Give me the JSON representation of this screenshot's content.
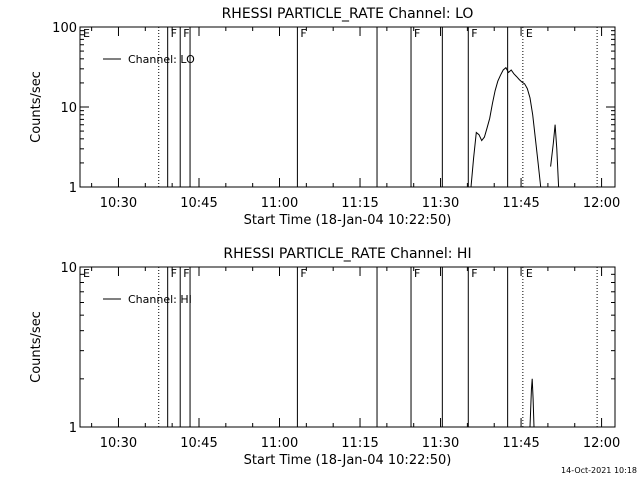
{
  "footer_stamp": "14-Oct-2021 10:18",
  "chart_data": [
    {
      "type": "line",
      "title": "RHESSI PARTICLE_RATE Channel: LO",
      "xlabel": "Start Time (18-Jan-04 10:22:50)",
      "ylabel": "Counts/sec",
      "xlim": [
        "10:22:50",
        "12:02:30"
      ],
      "ylim": [
        1,
        100
      ],
      "yscale": "log",
      "x_ticks": [
        "10:30",
        "10:45",
        "11:00",
        "11:15",
        "11:30",
        "11:45",
        "12:00"
      ],
      "y_ticks": [
        "1",
        "10",
        "100"
      ],
      "legend": {
        "label": "Channel: LO",
        "position": "top-left"
      },
      "flag_lines": [
        {
          "time": "10:22:50",
          "label": "E",
          "style": "none"
        },
        {
          "time": "10:37:30",
          "label": "",
          "style": "dotted"
        },
        {
          "time": "10:39:10",
          "label": "F",
          "style": "solid"
        },
        {
          "time": "10:41:30",
          "label": "F",
          "style": "solid"
        },
        {
          "time": "10:43:20",
          "label": "",
          "style": "solid"
        },
        {
          "time": "11:03:20",
          "label": "F",
          "style": "solid"
        },
        {
          "time": "11:18:10",
          "label": "",
          "style": "solid"
        },
        {
          "time": "11:24:30",
          "label": "F",
          "style": "solid"
        },
        {
          "time": "11:30:20",
          "label": "",
          "style": "solid"
        },
        {
          "time": "11:35:10",
          "label": "F",
          "style": "solid"
        },
        {
          "time": "11:42:30",
          "label": "",
          "style": "solid"
        },
        {
          "time": "11:45:20",
          "label": "E",
          "style": "dotted"
        },
        {
          "time": "11:59:10",
          "label": "",
          "style": "dotted"
        }
      ],
      "series": [
        {
          "name": "Channel: LO",
          "segments": [
            [
              [
                "11:35:40",
                1.0
              ],
              [
                "11:36:10",
                2.3
              ],
              [
                "11:36:40",
                4.8
              ],
              [
                "11:37:10",
                4.5
              ],
              [
                "11:37:40",
                3.8
              ],
              [
                "11:38:10",
                4.2
              ],
              [
                "11:38:40",
                5.5
              ],
              [
                "11:39:10",
                7.2
              ],
              [
                "11:39:40",
                11.0
              ],
              [
                "11:40:10",
                16.0
              ],
              [
                "11:40:40",
                21.0
              ],
              [
                "11:41:10",
                25.0
              ],
              [
                "11:41:40",
                29.0
              ],
              [
                "11:42:10",
                31.0
              ],
              [
                "11:42:40",
                27.0
              ],
              [
                "11:43:10",
                29.0
              ],
              [
                "11:43:40",
                26.0
              ],
              [
                "11:44:10",
                24.0
              ],
              [
                "11:44:40",
                22.0
              ],
              [
                "11:45:10",
                20.5
              ],
              [
                "11:45:40",
                19.5
              ],
              [
                "11:46:10",
                17.0
              ],
              [
                "11:46:40",
                13.0
              ],
              [
                "11:47:10",
                8.0
              ],
              [
                "11:47:40",
                4.0
              ],
              [
                "11:48:10",
                2.0
              ],
              [
                "11:48:40",
                1.0
              ]
            ],
            [
              [
                "11:50:30",
                1.8
              ],
              [
                "11:51:00",
                3.5
              ],
              [
                "11:51:20",
                6.0
              ],
              [
                "11:51:40",
                3.0
              ],
              [
                "11:52:00",
                1.0
              ]
            ]
          ]
        }
      ]
    },
    {
      "type": "line",
      "title": "RHESSI PARTICLE_RATE Channel: HI",
      "xlabel": "Start Time (18-Jan-04 10:22:50)",
      "ylabel": "Counts/sec",
      "xlim": [
        "10:22:50",
        "12:02:30"
      ],
      "ylim": [
        1,
        10
      ],
      "yscale": "log",
      "x_ticks": [
        "10:30",
        "10:45",
        "11:00",
        "11:15",
        "11:30",
        "11:45",
        "12:00"
      ],
      "y_ticks": [
        "1",
        "10"
      ],
      "legend": {
        "label": "Channel: HI",
        "position": "top-left"
      },
      "flag_lines": [
        {
          "time": "10:22:50",
          "label": "E",
          "style": "none"
        },
        {
          "time": "10:37:30",
          "label": "",
          "style": "dotted"
        },
        {
          "time": "10:39:10",
          "label": "F",
          "style": "solid"
        },
        {
          "time": "10:41:30",
          "label": "F",
          "style": "solid"
        },
        {
          "time": "10:43:20",
          "label": "",
          "style": "solid"
        },
        {
          "time": "11:03:20",
          "label": "F",
          "style": "solid"
        },
        {
          "time": "11:18:10",
          "label": "",
          "style": "solid"
        },
        {
          "time": "11:24:30",
          "label": "F",
          "style": "solid"
        },
        {
          "time": "11:30:20",
          "label": "",
          "style": "solid"
        },
        {
          "time": "11:35:10",
          "label": "F",
          "style": "solid"
        },
        {
          "time": "11:42:30",
          "label": "",
          "style": "solid"
        },
        {
          "time": "11:45:20",
          "label": "E",
          "style": "dotted"
        },
        {
          "time": "11:59:10",
          "label": "",
          "style": "dotted"
        }
      ],
      "series": [
        {
          "name": "Channel: HI",
          "segments": [
            [
              [
                "11:46:40",
                1.0
              ],
              [
                "11:46:55",
                1.7
              ],
              [
                "11:47:05",
                2.0
              ],
              [
                "11:47:15",
                1.5
              ],
              [
                "11:47:25",
                1.0
              ]
            ]
          ]
        }
      ]
    }
  ]
}
